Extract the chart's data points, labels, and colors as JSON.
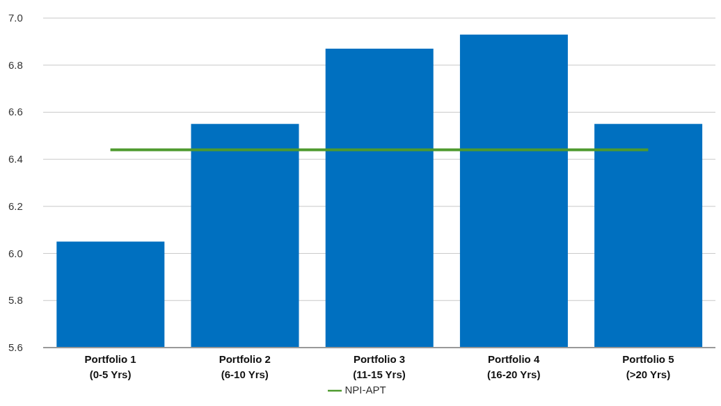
{
  "chart_data": {
    "type": "bar",
    "categories": [
      "Portfolio 1\n(0-5 Yrs)",
      "Portfolio 2\n(6-10 Yrs)",
      "Portfolio 3\n(11-15 Yrs)",
      "Portfolio 4\n(16-20 Yrs)",
      "Portfolio 5\n(>20 Yrs)"
    ],
    "series": [
      {
        "color": "#0070c0",
        "values": [
          6.05,
          6.55,
          6.87,
          6.93,
          6.55
        ]
      },
      {
        "type": "line",
        "name": "NPI-APT",
        "color": "#4e9a2e",
        "values": [
          6.44,
          6.44,
          6.44,
          6.44,
          6.44
        ]
      }
    ],
    "ylim": [
      5.6,
      7.0
    ],
    "yticks": [
      {
        "value": 5.6,
        "label": "5.6"
      },
      {
        "value": 5.8,
        "label": "5.8"
      },
      {
        "value": 6,
        "label": "6.0"
      },
      {
        "value": 6.2,
        "label": "6.2"
      },
      {
        "value": 6.4,
        "label": "6.4"
      },
      {
        "value": 6.6,
        "label": "6.6"
      },
      {
        "value": 6.8,
        "label": "6.8"
      },
      {
        "value": 7,
        "label": "7.0"
      }
    ],
    "grid": "y",
    "legend": "bottom",
    "marker": "none"
  }
}
